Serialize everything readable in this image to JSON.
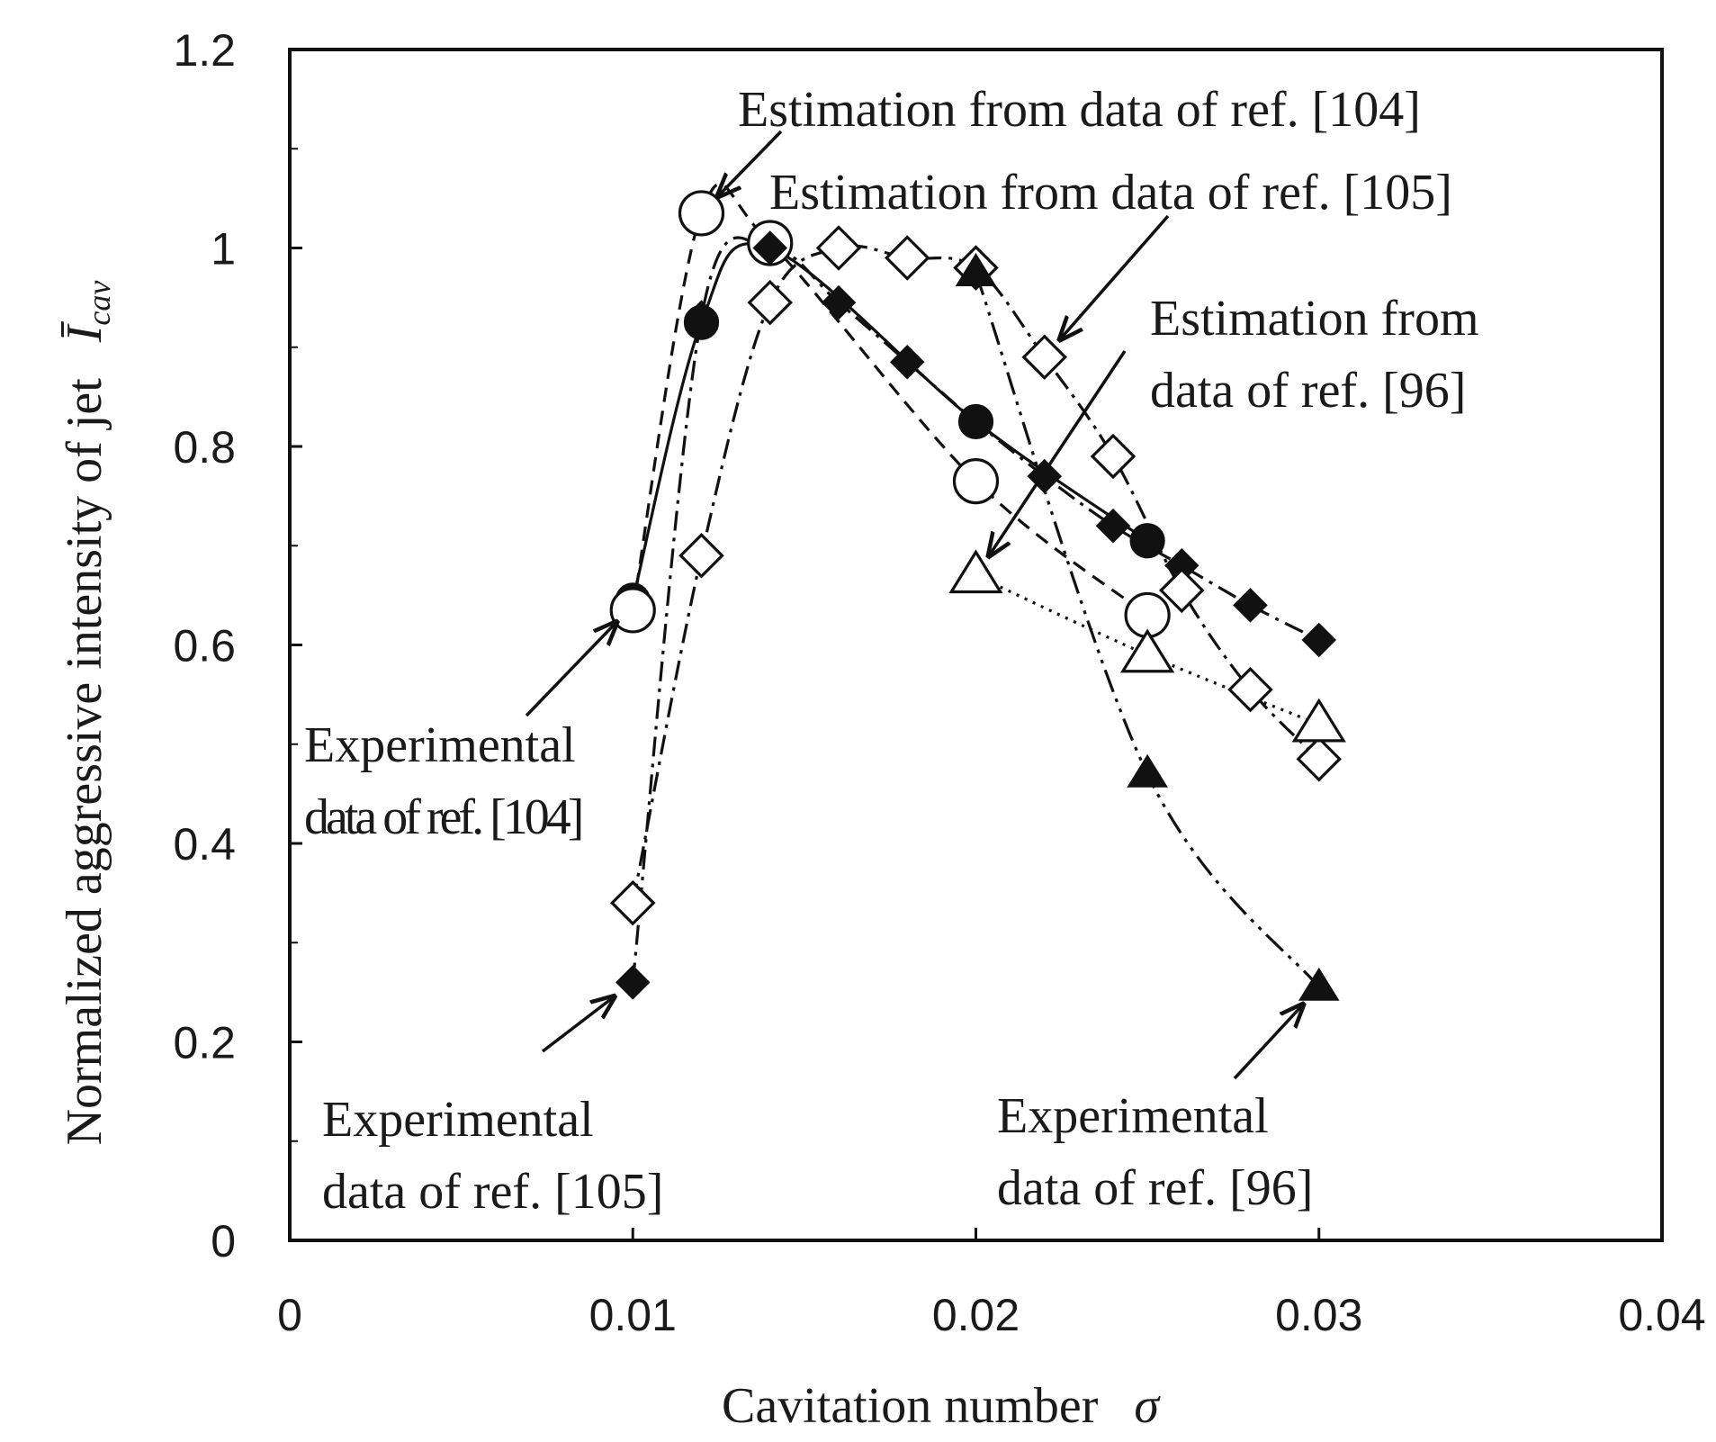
{
  "chart_data": {
    "type": "line",
    "title": "",
    "xlabel": "Cavitation number",
    "xlabel_symbol": "σ",
    "ylabel": "Normalized aggressive intensity of jet",
    "ylabel_symbol": "Ī",
    "ylabel_symbol_sub": "cav",
    "xlim": [
      0,
      0.04
    ],
    "ylim": [
      0,
      1.2
    ],
    "x_ticks": [
      "0",
      "0.01",
      "0.02",
      "0.03",
      "0.04"
    ],
    "y_ticks": [
      "0",
      "0.2",
      "0.4",
      "0.6",
      "0.8",
      "1",
      "1.2"
    ],
    "grid": false,
    "legend": "none",
    "series": [
      {
        "marker": "filled-circle",
        "line": "solid",
        "x": [
          0.01,
          0.012,
          0.014,
          0.02,
          0.025
        ],
        "y": [
          0.645,
          0.925,
          1.0,
          0.825,
          0.705
        ]
      },
      {
        "marker": "open-circle",
        "line": "dashed",
        "x": [
          0.01,
          0.012,
          0.014,
          0.02,
          0.025
        ],
        "y": [
          0.635,
          1.035,
          1.005,
          0.765,
          0.63
        ]
      },
      {
        "marker": "filled-diamond",
        "line": "dash-dot",
        "x": [
          0.01,
          0.012,
          0.014,
          0.016,
          0.018,
          0.02,
          0.022,
          0.024,
          0.026,
          0.028,
          0.03
        ],
        "y": [
          0.26,
          0.93,
          1.0,
          0.945,
          0.885,
          0.825,
          0.77,
          0.72,
          0.68,
          0.64,
          0.605
        ]
      },
      {
        "marker": "open-diamond",
        "line": "dash-dot",
        "x": [
          0.01,
          0.012,
          0.014,
          0.016,
          0.018,
          0.02,
          0.022,
          0.024,
          0.026,
          0.028,
          0.03
        ],
        "y": [
          0.34,
          0.69,
          0.945,
          1.0,
          0.99,
          0.98,
          0.89,
          0.79,
          0.655,
          0.555,
          0.485
        ]
      },
      {
        "marker": "filled-triangle",
        "line": "dash-dot-dot",
        "x": [
          0.02,
          0.025,
          0.03
        ],
        "y": [
          0.975,
          0.47,
          0.255
        ]
      },
      {
        "marker": "open-triangle",
        "line": "dotted",
        "x": [
          0.02,
          0.025,
          0.03
        ],
        "y": [
          0.67,
          0.59,
          0.52
        ]
      }
    ],
    "annotations": [
      {
        "lines": [
          "Estimation from data of ref. [104]"
        ],
        "points_to": [
          0.012,
          1.035
        ]
      },
      {
        "lines": [
          "Estimation from data of ref. [105]"
        ],
        "points_to": [
          0.022,
          0.89
        ]
      },
      {
        "lines": [
          "Estimation from",
          "data of ref. [96]"
        ],
        "points_to": [
          0.02,
          0.67
        ]
      },
      {
        "lines": [
          "Experimental",
          "data of ref. [104]"
        ],
        "points_to": [
          0.01,
          0.64
        ]
      },
      {
        "lines": [
          "Experimental",
          "data of ref. [105]"
        ],
        "points_to": [
          0.01,
          0.26
        ]
      },
      {
        "lines": [
          "Experimental",
          "data of ref. [96]"
        ],
        "points_to": [
          0.03,
          0.255
        ]
      }
    ]
  }
}
